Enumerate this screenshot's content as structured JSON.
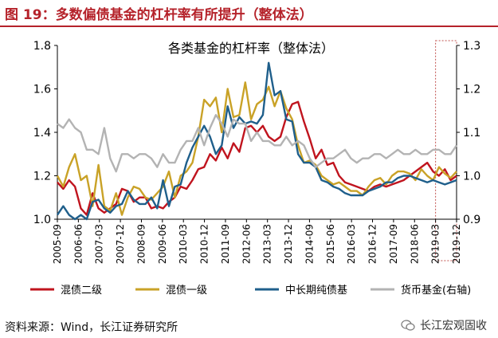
{
  "header": {
    "title": "图 19：多数偏债基金的杠杆率有所提升（整体法）"
  },
  "footer": {
    "source": "资料来源：Wind，长江证券研究所",
    "watermark": "长江宏观固收"
  },
  "colors": {
    "accent": "#b5222a",
    "axis": "#000000",
    "highlight_box": "#c0504d"
  },
  "chart_data": {
    "type": "line",
    "title": "各类基金的杠杆率（整体法）",
    "x_labels": [
      "2005-09",
      "2006-06",
      "2007-03",
      "2007-12",
      "2008-09",
      "2009-06",
      "2010-03",
      "2010-12",
      "2011-09",
      "2012-06",
      "2013-03",
      "2013-12",
      "2014-09",
      "2015-06",
      "2016-03",
      "2016-12",
      "2017-09",
      "2018-06",
      "2019-03",
      "2019-12"
    ],
    "y_left": {
      "min": 1.0,
      "max": 1.8,
      "ticks": [
        "1.0",
        "1.2",
        "1.4",
        "1.6",
        "1.8"
      ]
    },
    "y_right": {
      "min": 0.9,
      "max": 1.3,
      "ticks": [
        "0.9",
        "1.0",
        "1.1",
        "1.2",
        "1.3"
      ]
    },
    "highlight_range": [
      "2019-03",
      "2019-12"
    ],
    "series": [
      {
        "name": "混债二级",
        "axis": "left",
        "color": "#c0141e",
        "values": [
          1.17,
          1.14,
          1.18,
          1.15,
          1.05,
          1.02,
          1.12,
          1.05,
          1.03,
          1.05,
          1.07,
          1.14,
          1.13,
          1.08,
          1.1,
          1.1,
          1.05,
          1.06,
          1.05,
          1.08,
          1.1,
          1.15,
          1.14,
          1.18,
          1.23,
          1.24,
          1.3,
          1.27,
          1.33,
          1.28,
          1.35,
          1.31,
          1.42,
          1.43,
          1.4,
          1.43,
          1.38,
          1.36,
          1.38,
          1.47,
          1.53,
          1.54,
          1.45,
          1.37,
          1.28,
          1.32,
          1.25,
          1.26,
          1.2,
          1.17,
          1.16,
          1.15,
          1.14,
          1.13,
          1.15,
          1.16,
          1.15,
          1.16,
          1.17,
          1.18,
          1.2,
          1.22,
          1.24,
          1.26,
          1.22,
          1.2,
          1.23,
          1.18,
          1.2
        ]
      },
      {
        "name": "混债一级",
        "axis": "left",
        "color": "#c9a227",
        "values": [
          1.2,
          1.15,
          1.24,
          1.3,
          1.18,
          1.2,
          1.06,
          1.25,
          1.06,
          1.04,
          1.12,
          1.02,
          1.1,
          1.15,
          1.14,
          1.1,
          1.09,
          1.12,
          1.15,
          1.22,
          1.1,
          1.2,
          1.22,
          1.26,
          1.38,
          1.55,
          1.52,
          1.56,
          1.4,
          1.6,
          1.47,
          1.48,
          1.63,
          1.46,
          1.53,
          1.55,
          1.61,
          1.52,
          1.59,
          1.51,
          1.46,
          1.34,
          1.26,
          1.27,
          1.25,
          1.2,
          1.18,
          1.16,
          1.17,
          1.15,
          1.13,
          1.13,
          1.11,
          1.15,
          1.18,
          1.19,
          1.16,
          1.2,
          1.22,
          1.22,
          1.21,
          1.18,
          1.23,
          1.2,
          1.18,
          1.24,
          1.21,
          1.19,
          1.22
        ]
      },
      {
        "name": "中长期纯债基",
        "axis": "left",
        "color": "#1f5f8b",
        "values": [
          1.02,
          1.06,
          1.02,
          1.0,
          1.02,
          1.0,
          1.08,
          1.09,
          1.05,
          1.03,
          1.06,
          1.07,
          1.13,
          1.09,
          1.07,
          1.07,
          1.1,
          1.05,
          1.18,
          1.06,
          1.15,
          1.16,
          1.26,
          1.33,
          1.38,
          1.43,
          1.38,
          1.3,
          1.34,
          1.52,
          1.42,
          1.47,
          1.44,
          1.45,
          1.44,
          1.48,
          1.72,
          1.57,
          1.59,
          1.46,
          1.45,
          1.3,
          1.26,
          1.26,
          1.24,
          1.18,
          1.17,
          1.15,
          1.14,
          1.12,
          1.11,
          1.11,
          1.11,
          1.13,
          1.14,
          1.15,
          1.17,
          1.17,
          1.19,
          1.2,
          1.2,
          1.19,
          1.18,
          1.17,
          1.18,
          1.17,
          1.16,
          1.17,
          1.18
        ]
      },
      {
        "name": "货币基金(右轴)",
        "axis": "right",
        "color": "#b3b3b3",
        "values": [
          1.12,
          1.11,
          1.13,
          1.11,
          1.1,
          1.06,
          1.06,
          1.05,
          1.11,
          1.04,
          1.01,
          1.05,
          1.05,
          1.04,
          1.05,
          1.05,
          1.04,
          1.02,
          1.05,
          1.03,
          1.03,
          1.06,
          1.08,
          1.08,
          1.11,
          1.07,
          1.11,
          1.14,
          1.12,
          1.09,
          1.13,
          1.12,
          1.12,
          1.08,
          1.1,
          1.08,
          1.08,
          1.07,
          1.07,
          1.09,
          1.07,
          1.08,
          1.07,
          1.04,
          1.02,
          1.03,
          1.04,
          1.04,
          1.05,
          1.06,
          1.04,
          1.03,
          1.04,
          1.04,
          1.05,
          1.05,
          1.04,
          1.05,
          1.06,
          1.05,
          1.05,
          1.06,
          1.05,
          1.05,
          1.06,
          1.06,
          1.05,
          1.05,
          1.07
        ]
      }
    ]
  }
}
